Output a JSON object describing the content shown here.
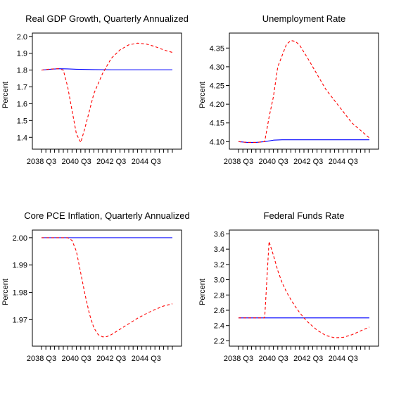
{
  "chart_data": [
    {
      "type": "line",
      "title": "Real GDP Growth, Quarterly Annualized",
      "ylabel": "Percent",
      "xlabel": "",
      "ylim": [
        1.33,
        2.02
      ],
      "yticks": [
        1.4,
        1.5,
        1.6,
        1.7,
        1.8,
        1.9,
        2.0
      ],
      "ytick_labels": [
        "1.4",
        "1.5",
        "1.6",
        "1.7",
        "1.8",
        "1.9",
        "2.0"
      ],
      "x_tick_labels": [
        "2038 Q3",
        "2040 Q3",
        "2042 Q3",
        "2044 Q3"
      ],
      "x_tick_label_quarters": [
        0,
        8,
        16,
        24
      ],
      "n_quarters": 31,
      "grid": false,
      "series": [
        {
          "color": "#0000ff",
          "dash": "solid",
          "x": [
            0,
            2,
            4,
            6,
            8,
            12,
            16,
            20,
            24,
            28,
            30
          ],
          "y": [
            1.8,
            1.805,
            1.808,
            1.807,
            1.805,
            1.803,
            1.802,
            1.802,
            1.802,
            1.802,
            1.802
          ]
        },
        {
          "color": "#ff0000",
          "dash": "dashed",
          "x": [
            0,
            2,
            4,
            5,
            6,
            7,
            8,
            9,
            10,
            11,
            12,
            13,
            14,
            16,
            18,
            20,
            22,
            24,
            26,
            28,
            30
          ],
          "y": [
            1.8,
            1.806,
            1.808,
            1.8,
            1.7,
            1.56,
            1.42,
            1.37,
            1.46,
            1.56,
            1.66,
            1.72,
            1.78,
            1.87,
            1.92,
            1.95,
            1.96,
            1.955,
            1.94,
            1.92,
            1.905
          ]
        }
      ]
    },
    {
      "type": "line",
      "title": "Unemployment Rate",
      "ylabel": "Percent",
      "xlabel": "",
      "ylim": [
        4.08,
        4.39
      ],
      "yticks": [
        4.1,
        4.15,
        4.2,
        4.25,
        4.3,
        4.35
      ],
      "ytick_labels": [
        "4.10",
        "4.15",
        "4.20",
        "4.25",
        "4.30",
        "4.35"
      ],
      "x_tick_labels": [
        "2038 Q3",
        "2040 Q3",
        "2042 Q3",
        "2044 Q3"
      ],
      "x_tick_label_quarters": [
        0,
        8,
        16,
        24
      ],
      "n_quarters": 31,
      "grid": false,
      "series": [
        {
          "color": "#0000ff",
          "dash": "solid",
          "x": [
            0,
            2,
            4,
            6,
            8,
            10,
            12,
            16,
            20,
            24,
            30
          ],
          "y": [
            4.1,
            4.098,
            4.098,
            4.1,
            4.104,
            4.105,
            4.105,
            4.105,
            4.105,
            4.105,
            4.105
          ]
        },
        {
          "color": "#ff0000",
          "dash": "dashed",
          "x": [
            0,
            2,
            4,
            6,
            7,
            8,
            9,
            10,
            11,
            12,
            13,
            14,
            16,
            18,
            20,
            22,
            24,
            26,
            28,
            30
          ],
          "y": [
            4.1,
            4.098,
            4.098,
            4.1,
            4.165,
            4.22,
            4.3,
            4.33,
            4.36,
            4.37,
            4.368,
            4.358,
            4.32,
            4.28,
            4.24,
            4.21,
            4.18,
            4.15,
            4.13,
            4.11
          ]
        }
      ]
    },
    {
      "type": "line",
      "title": "Core PCE Inflation, Quarterly Annualized",
      "ylabel": "Percent",
      "xlabel": "",
      "ylim": [
        1.9603,
        2.0028
      ],
      "yticks": [
        1.97,
        1.98,
        1.99,
        2.0
      ],
      "ytick_labels": [
        "1.97",
        "1.98",
        "1.99",
        "2.00"
      ],
      "x_tick_labels": [
        "2038 Q3",
        "2040 Q3",
        "2042 Q3",
        "2044 Q3"
      ],
      "x_tick_label_quarters": [
        0,
        8,
        16,
        24
      ],
      "n_quarters": 31,
      "grid": false,
      "series": [
        {
          "color": "#0000ff",
          "dash": "solid",
          "x": [
            0,
            10,
            20,
            30
          ],
          "y": [
            2.0,
            2.0,
            2.0,
            2.0
          ]
        },
        {
          "color": "#ff0000",
          "dash": "dashed",
          "x": [
            0,
            6,
            7,
            8,
            9,
            10,
            11,
            12,
            13,
            14,
            15,
            16,
            18,
            20,
            22,
            24,
            26,
            28,
            30
          ],
          "y": [
            2.0,
            2.0,
            1.999,
            1.995,
            1.987,
            1.979,
            1.972,
            1.967,
            1.9645,
            1.9637,
            1.9638,
            1.9645,
            1.9665,
            1.9685,
            1.9705,
            1.9722,
            1.9737,
            1.975,
            1.9758
          ]
        }
      ]
    },
    {
      "type": "line",
      "title": "Federal Funds Rate",
      "ylabel": "Percent",
      "xlabel": "",
      "ylim": [
        2.13,
        3.65
      ],
      "yticks": [
        2.2,
        2.4,
        2.6,
        2.8,
        3.0,
        3.2,
        3.4,
        3.6
      ],
      "ytick_labels": [
        "2.2",
        "2.4",
        "2.6",
        "2.8",
        "3.0",
        "3.2",
        "3.4",
        "3.6"
      ],
      "x_tick_labels": [
        "2038 Q3",
        "2040 Q3",
        "2042 Q3",
        "2044 Q3"
      ],
      "x_tick_label_quarters": [
        0,
        8,
        16,
        24
      ],
      "n_quarters": 31,
      "grid": false,
      "series": [
        {
          "color": "#0000ff",
          "dash": "solid",
          "x": [
            0,
            10,
            20,
            30
          ],
          "y": [
            2.5,
            2.5,
            2.5,
            2.5
          ]
        },
        {
          "color": "#ff0000",
          "dash": "dashed",
          "x": [
            0,
            5,
            6,
            7,
            8,
            9,
            10,
            11,
            12,
            13,
            14,
            15,
            16,
            18,
            20,
            22,
            24,
            26,
            28,
            30
          ],
          "y": [
            2.5,
            2.5,
            2.5,
            3.5,
            3.32,
            3.12,
            2.96,
            2.84,
            2.74,
            2.65,
            2.57,
            2.5,
            2.44,
            2.34,
            2.27,
            2.24,
            2.245,
            2.28,
            2.33,
            2.38
          ]
        }
      ]
    }
  ]
}
